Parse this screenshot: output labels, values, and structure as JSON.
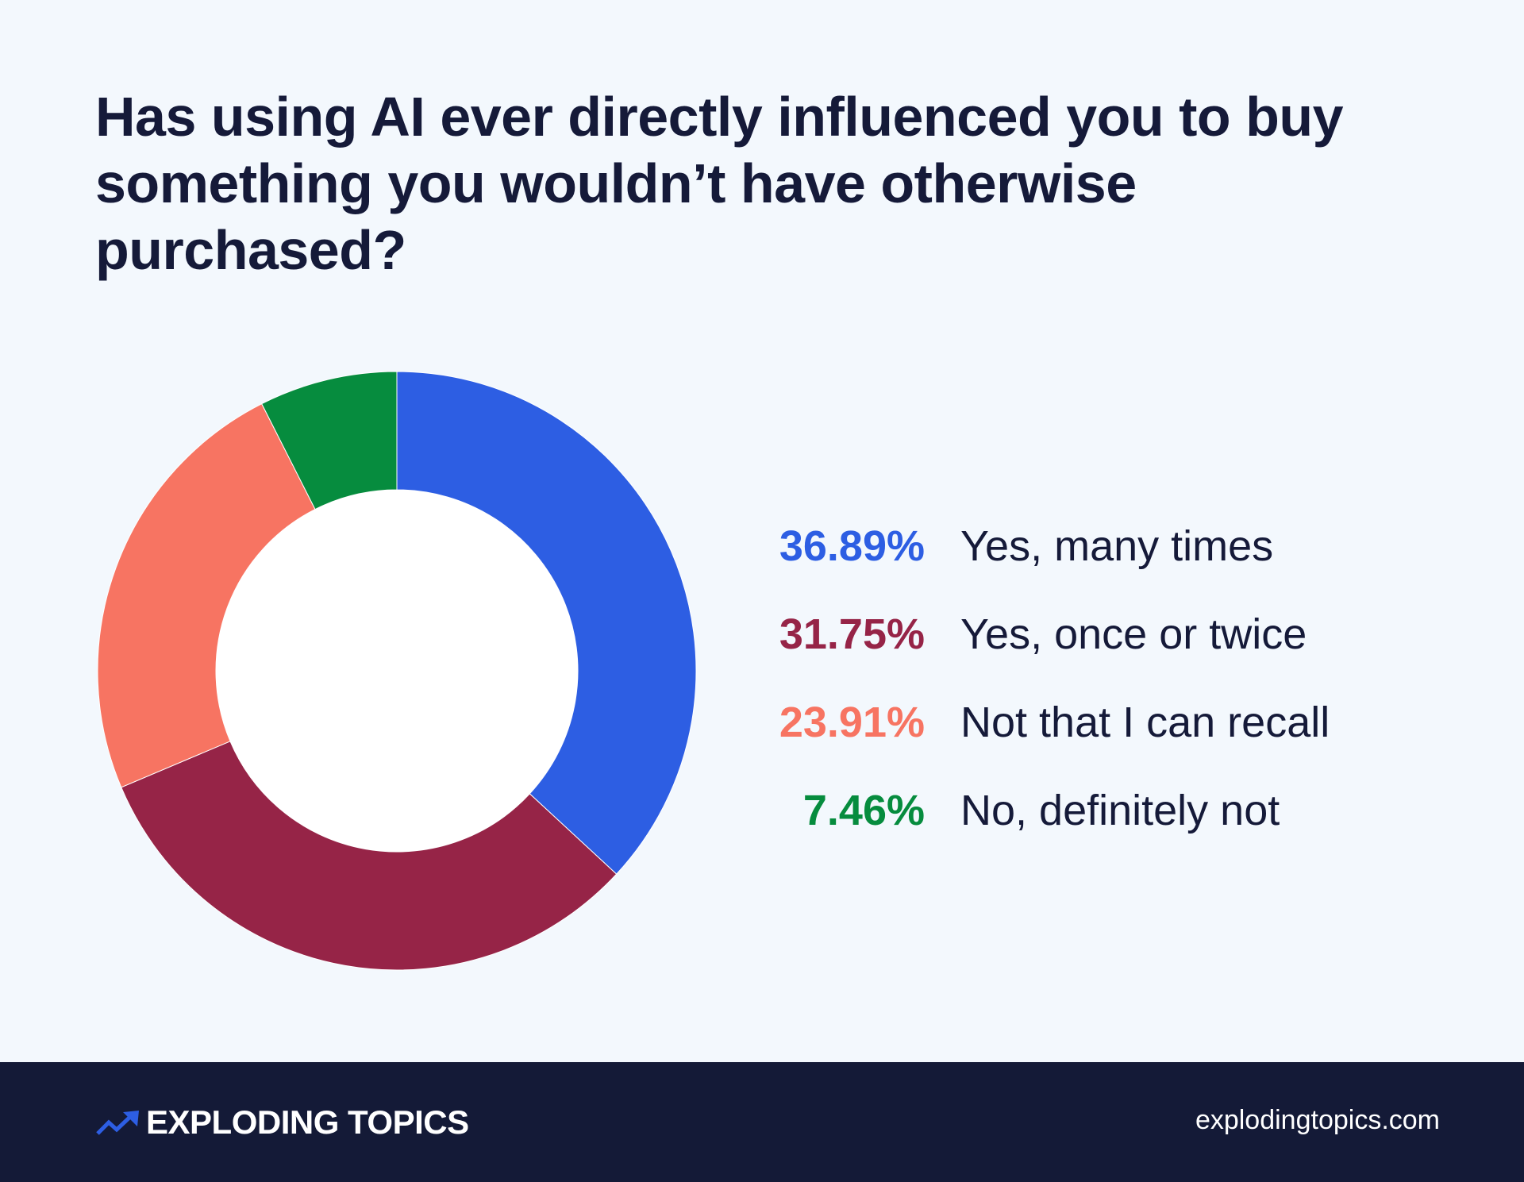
{
  "header": {
    "title": "Has using AI ever directly influenced you to buy something you wouldn’t have otherwise purchased?"
  },
  "chart_data": {
    "type": "pie",
    "donut": true,
    "title": "Has using AI ever directly influenced you to buy something you wouldn’t have otherwise purchased?",
    "legend_position": "right",
    "categories": [
      "Yes, many times",
      "Yes, once or twice",
      "Not that I can recall",
      "No, definitely not"
    ],
    "values": [
      36.89,
      31.75,
      23.91,
      7.46
    ],
    "value_labels": [
      "36.89%",
      "31.75%",
      "23.91%",
      "7.46%"
    ],
    "colors": [
      "#2d5ee3",
      "#962447",
      "#f77462",
      "#068c3e"
    ]
  },
  "footer": {
    "brand_icon": "trend-arrow-icon",
    "brand_name": "EXPLODING TOPICS",
    "site_url": "explodingtopics.com",
    "brand_color": "#2d5ee3"
  }
}
